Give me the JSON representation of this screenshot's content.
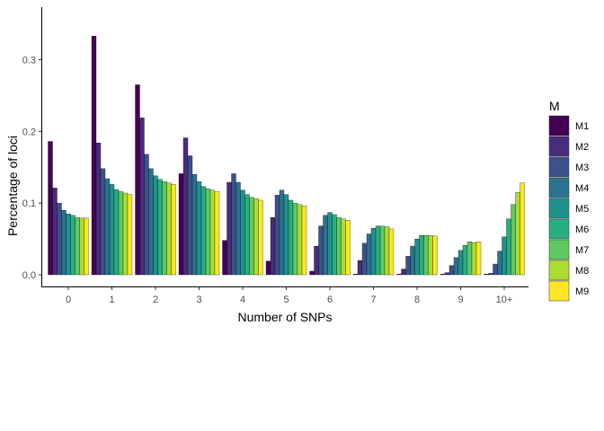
{
  "chart_data": {
    "type": "bar",
    "xlabel": "Number of SNPs",
    "ylabel": "Percentage of loci",
    "legend_title": "M",
    "legend_position": "right",
    "grid": false,
    "ylim": [
      0,
      0.345
    ],
    "yticks": [
      "0.0",
      "0.1",
      "0.2",
      "0.3"
    ],
    "categories": [
      "0",
      "1",
      "2",
      "3",
      "4",
      "5",
      "6",
      "7",
      "8",
      "9",
      "10+"
    ],
    "series": [
      {
        "name": "M1",
        "color": "#440154",
        "values": [
          0.186,
          0.333,
          0.265,
          0.141,
          0.048,
          0.019,
          0.005,
          0.001,
          0.001,
          0.001,
          0.001
        ]
      },
      {
        "name": "M2",
        "color": "#472d7b",
        "values": [
          0.121,
          0.184,
          0.219,
          0.191,
          0.129,
          0.08,
          0.04,
          0.02,
          0.008,
          0.003,
          0.002
        ]
      },
      {
        "name": "M3",
        "color": "#3b528b",
        "values": [
          0.1,
          0.148,
          0.168,
          0.166,
          0.141,
          0.111,
          0.068,
          0.044,
          0.026,
          0.013,
          0.015
        ]
      },
      {
        "name": "M4",
        "color": "#2c728e",
        "values": [
          0.09,
          0.134,
          0.148,
          0.14,
          0.129,
          0.118,
          0.083,
          0.057,
          0.04,
          0.024,
          0.033
        ]
      },
      {
        "name": "M5",
        "color": "#21918c",
        "values": [
          0.085,
          0.126,
          0.138,
          0.13,
          0.118,
          0.112,
          0.087,
          0.065,
          0.05,
          0.034,
          0.053
        ]
      },
      {
        "name": "M6",
        "color": "#28ae80",
        "values": [
          0.083,
          0.119,
          0.133,
          0.123,
          0.112,
          0.104,
          0.084,
          0.068,
          0.055,
          0.041,
          0.078
        ]
      },
      {
        "name": "M7",
        "color": "#5ec962",
        "values": [
          0.08,
          0.116,
          0.13,
          0.12,
          0.108,
          0.1,
          0.08,
          0.068,
          0.055,
          0.046,
          0.098
        ]
      },
      {
        "name": "M8",
        "color": "#addc30",
        "values": [
          0.079,
          0.114,
          0.128,
          0.118,
          0.106,
          0.098,
          0.078,
          0.067,
          0.055,
          0.045,
          0.115
        ]
      },
      {
        "name": "M9",
        "color": "#fde725",
        "values": [
          0.079,
          0.112,
          0.126,
          0.116,
          0.104,
          0.096,
          0.076,
          0.064,
          0.054,
          0.046,
          0.128
        ]
      }
    ]
  }
}
